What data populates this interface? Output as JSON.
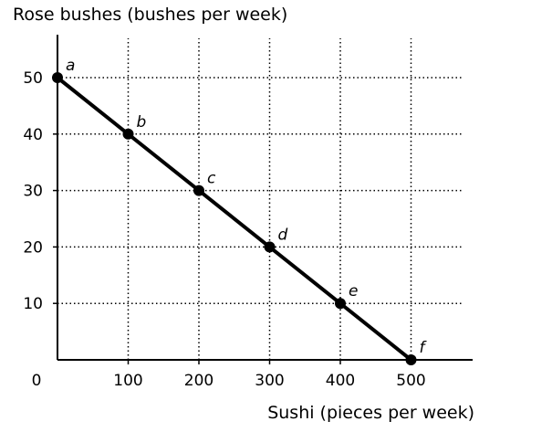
{
  "chart_data": {
    "type": "line",
    "xlabel": "Sushi (pieces per week)",
    "ylabel": "Rose bushes (bushes per week)",
    "origin_label": "0",
    "xlim": [
      0,
      550
    ],
    "ylim": [
      0,
      55
    ],
    "x_ticks": [
      100,
      200,
      300,
      400,
      500
    ],
    "y_ticks": [
      10,
      20,
      30,
      40,
      50
    ],
    "grid": "dotted",
    "series": [
      {
        "points": [
          {
            "label": "a",
            "x": 0,
            "y": 50
          },
          {
            "label": "b",
            "x": 100,
            "y": 40
          },
          {
            "label": "c",
            "x": 200,
            "y": 30
          },
          {
            "label": "d",
            "x": 300,
            "y": 20
          },
          {
            "label": "e",
            "x": 400,
            "y": 10
          },
          {
            "label": "f",
            "x": 500,
            "y": 0
          }
        ]
      }
    ]
  }
}
